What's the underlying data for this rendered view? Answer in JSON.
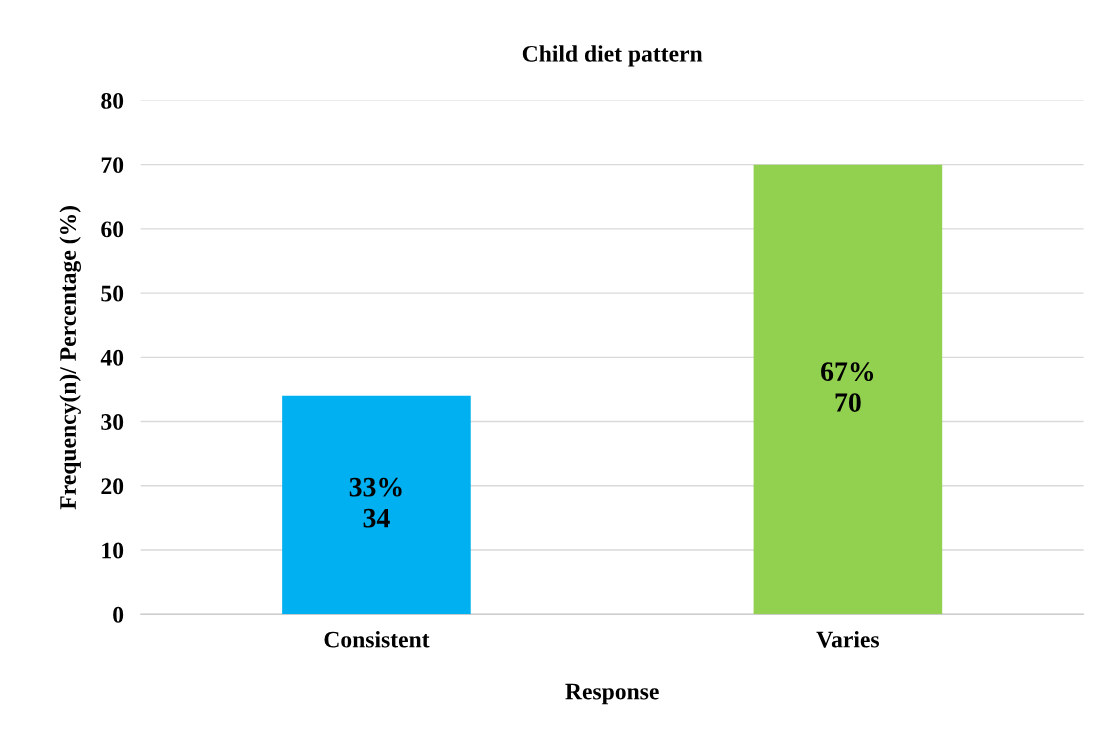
{
  "chart_data": {
    "type": "bar",
    "title": "Child diet pattern",
    "xlabel": "Response",
    "ylabel": "Frequency(n)/ Percentage (%)",
    "categories": [
      "Consistent",
      "Varies"
    ],
    "values": [
      34,
      70
    ],
    "colors": [
      "#00b0f0",
      "#92d050"
    ],
    "value_labels": [
      "33%\n34",
      "67%\n70"
    ],
    "ylim": [
      0,
      80
    ],
    "yticks": [
      0,
      10,
      20,
      30,
      40,
      50,
      60,
      70,
      80
    ],
    "grid": "y",
    "legend": false
  }
}
